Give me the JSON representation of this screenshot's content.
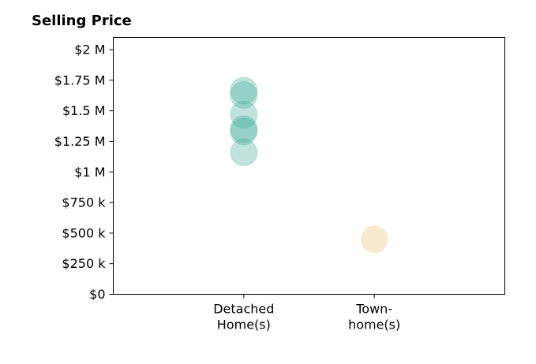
{
  "chart_data": {
    "type": "scatter",
    "title": "Selling Price",
    "xlabel": "",
    "ylabel": "",
    "categories": [
      [
        "Detached",
        "Home(s)"
      ],
      [
        "Town-",
        "home(s)"
      ]
    ],
    "y_ticks": [
      {
        "value": 0,
        "label": "$0"
      },
      {
        "value": 250000,
        "label": "$250 k"
      },
      {
        "value": 500000,
        "label": "$500 k"
      },
      {
        "value": 750000,
        "label": "$750 k"
      },
      {
        "value": 1000000,
        "label": "$1 M"
      },
      {
        "value": 1250000,
        "label": "$1.25 M"
      },
      {
        "value": 1500000,
        "label": "$1.5 M"
      },
      {
        "value": 1750000,
        "label": "$1.75 M"
      },
      {
        "value": 2000000,
        "label": "$2 M"
      }
    ],
    "ylim": [
      0,
      2100000
    ],
    "xlim": [
      -1,
      2
    ],
    "grid": false,
    "series": [
      {
        "category_index": 0,
        "color": "#3aaa96",
        "values": [
          1160000,
          1330000,
          1350000,
          1470000,
          1630000,
          1665000
        ]
      },
      {
        "category_index": 1,
        "color": "#f0d9a8",
        "values": [
          450000
        ]
      }
    ]
  }
}
